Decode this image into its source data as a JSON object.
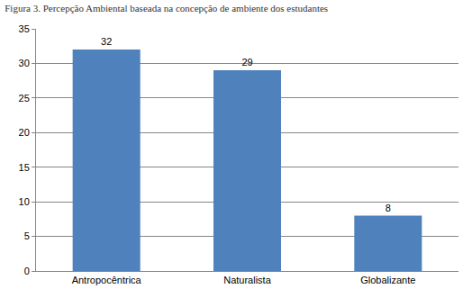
{
  "chart_data": {
    "type": "bar",
    "title": "Figura 3. Percepção Ambiental baseada na concepção de ambiente dos estudantes",
    "categories": [
      "Antropocêntrica",
      "Naturalista",
      "Globalizante"
    ],
    "values": [
      32,
      29,
      8
    ],
    "color": "#4f81bd",
    "ylim": [
      0,
      35
    ],
    "yticks": [
      0,
      5,
      10,
      15,
      20,
      25,
      30,
      35
    ],
    "grid": true,
    "data_labels": true
  }
}
